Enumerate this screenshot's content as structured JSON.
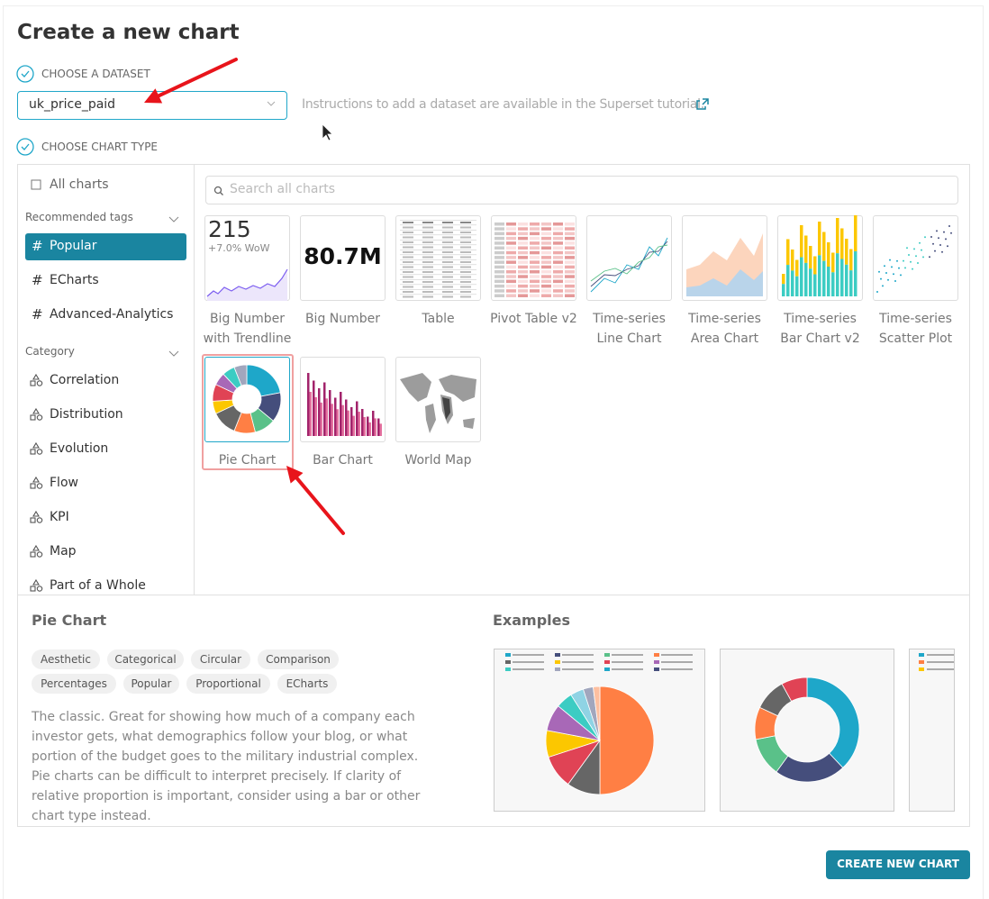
{
  "header": {
    "title": "Create a new chart"
  },
  "dataset": {
    "step_label": "CHOOSE A DATASET",
    "selected": "uk_price_paid",
    "instructions": "Instructions to add a dataset are available in the Superset tutorial."
  },
  "chart_type": {
    "step_label": "CHOOSE CHART TYPE"
  },
  "sidebar": {
    "all_charts": "All charts",
    "recommended_tags": {
      "title": "Recommended tags",
      "items": [
        "Popular",
        "ECharts",
        "Advanced-Analytics"
      ]
    },
    "category": {
      "title": "Category",
      "items": [
        "Correlation",
        "Distribution",
        "Evolution",
        "Flow",
        "KPI",
        "Map",
        "Part of a Whole"
      ]
    }
  },
  "search": {
    "placeholder": "Search all charts"
  },
  "charts": [
    {
      "label": "Big Number with Trendline",
      "preview_value": "215",
      "preview_note": "+7.0% WoW"
    },
    {
      "label": "Big Number",
      "preview_value": "80.7M"
    },
    {
      "label": "Table"
    },
    {
      "label": "Pivot Table v2"
    },
    {
      "label": "Time-series Line Chart"
    },
    {
      "label": "Time-series Area Chart"
    },
    {
      "label": "Time-series Bar Chart v2"
    },
    {
      "label": "Time-series Scatter Plot"
    },
    {
      "label": "Pie Chart"
    },
    {
      "label": "Bar Chart"
    },
    {
      "label": "World Map"
    }
  ],
  "details": {
    "title": "Pie Chart",
    "tags": [
      "Aesthetic",
      "Categorical",
      "Circular",
      "Comparison",
      "Percentages",
      "Popular",
      "Proportional",
      "ECharts"
    ],
    "description": "The classic. Great for showing how much of a company each investor gets, what demographics follow your blog, or what portion of the budget goes to the military industrial complex. Pie charts can be difficult to interpret precisely. If clarity of relative proportion is important, consider using a bar or other chart type instead.",
    "examples_title": "Examples"
  },
  "button": "CREATE NEW CHART"
}
